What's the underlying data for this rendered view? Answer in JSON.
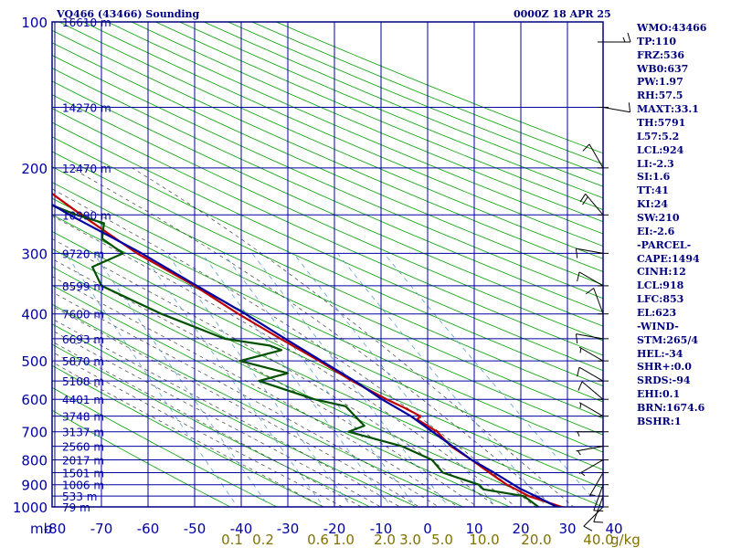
{
  "header": {
    "station": "VQ466 (43466) Sounding",
    "time": "0000Z 18 APR 25"
  },
  "indices": [
    "WMO:43466",
    "TP:110",
    "FRZ:536",
    "WB0:637",
    "PW:1.97",
    "RH:57.5",
    "MAXT:33.1",
    "TH:5791",
    "L57:5.2",
    "LCL:924",
    "LI:-2.3",
    "SI:1.6",
    "TT:41",
    "KI:24",
    "SW:210",
    "EI:-2.6",
    "-PARCEL-",
    "CAPE:1494",
    "CINH:12",
    "LCL:918",
    "LFC:853",
    "EL:623",
    "-WIND-",
    "STM:265/4",
    "HEL:-34",
    "SHR+:0.0",
    "SRDS:-94",
    "EHI:0.1",
    "BRN:1674.6",
    "BSHR:1"
  ],
  "colors": {
    "frame": "#00007f",
    "isotherm": "#0000a0",
    "isobar": "#0000a0",
    "dry_adiabat": "#00a000",
    "moist_adiabat": "#404040",
    "mixing_ratio": "#5aa0d0",
    "temperature": "#c00000",
    "dewpoint": "#005000",
    "parcel": "#0000a0",
    "axis_label": "#0000a0",
    "mixing_label": "#807000"
  },
  "chart_data": {
    "type": "skew-t",
    "y_axis": "pressure (hPa), logarithmic",
    "pressure_levels": [
      100,
      150,
      200,
      250,
      300,
      350,
      400,
      450,
      500,
      550,
      600,
      650,
      700,
      750,
      800,
      850,
      900,
      950,
      1000
    ],
    "y_tick_labels": [
      "100",
      "200",
      "300",
      "400",
      "500",
      "600",
      "700",
      "800",
      "900",
      "1000"
    ],
    "y_axis_unit": "mb",
    "x_tick_labels": [
      "-80",
      "-70",
      "-60",
      "-50",
      "-40",
      "-30",
      "-20",
      "-10",
      "0",
      "10",
      "20",
      "30",
      "40"
    ],
    "x_ticks": [
      -80,
      -70,
      -60,
      -50,
      -40,
      -30,
      -20,
      -10,
      0,
      10,
      20,
      30,
      40
    ],
    "height_labels": [
      {
        "p": 100,
        "text": "16610 m"
      },
      {
        "p": 150,
        "text": "14270 m"
      },
      {
        "p": 200,
        "text": "12470 m"
      },
      {
        "p": 250,
        "text": "10990 m"
      },
      {
        "p": 300,
        "text": "9720 m"
      },
      {
        "p": 350,
        "text": "8599 m"
      },
      {
        "p": 400,
        "text": "7600 m"
      },
      {
        "p": 450,
        "text": "6693 m"
      },
      {
        "p": 500,
        "text": "5870 m"
      },
      {
        "p": 550,
        "text": "5108 m"
      },
      {
        "p": 600,
        "text": "4401 m"
      },
      {
        "p": 650,
        "text": "3748 m"
      },
      {
        "p": 700,
        "text": "3137 m"
      },
      {
        "p": 750,
        "text": "2560 m"
      },
      {
        "p": 800,
        "text": "2017 m"
      },
      {
        "p": 850,
        "text": "1501 m"
      },
      {
        "p": 900,
        "text": "1006 m"
      },
      {
        "p": 950,
        "text": "533 m"
      },
      {
        "p": 1000,
        "text": "79 m"
      }
    ],
    "mixing_ratio_labels": [
      "0.1",
      "0.2",
      "0.6",
      "1.0",
      "2.0",
      "3.0",
      "5.0",
      "10.0",
      "20.0",
      "40.0"
    ],
    "mixing_ratio_unit": "g/kg",
    "series": [
      {
        "role": "temperature",
        "points": [
          [
            1006,
            29
          ],
          [
            1000,
            28
          ],
          [
            950,
            22
          ],
          [
            920,
            20
          ],
          [
            900,
            18.5
          ],
          [
            850,
            16
          ],
          [
            800,
            13.5
          ],
          [
            750,
            10.5
          ],
          [
            700,
            9
          ],
          [
            660,
            6
          ],
          [
            650,
            7
          ],
          [
            625,
            4.5
          ],
          [
            600,
            1.5
          ],
          [
            550,
            -4
          ],
          [
            500,
            -9
          ],
          [
            450,
            -15
          ],
          [
            400,
            -21.5
          ],
          [
            350,
            -28
          ],
          [
            300,
            -37
          ],
          [
            250,
            -45
          ],
          [
            200,
            -54
          ],
          [
            150,
            -63
          ],
          [
            110,
            -77
          ],
          [
            100,
            -80
          ]
        ]
      },
      {
        "role": "dewpoint",
        "points": [
          [
            1006,
            22
          ],
          [
            1000,
            23
          ],
          [
            950,
            21
          ],
          [
            920,
            13
          ],
          [
            900,
            12.5
          ],
          [
            850,
            6
          ],
          [
            800,
            5
          ],
          [
            750,
            0
          ],
          [
            700,
            -10
          ],
          [
            680,
            -6
          ],
          [
            650,
            -7
          ],
          [
            620,
            -8
          ],
          [
            600,
            -14
          ],
          [
            550,
            -24
          ],
          [
            530,
            -17
          ],
          [
            500,
            -26
          ],
          [
            475,
            -16
          ],
          [
            465,
            -18
          ],
          [
            450,
            -27
          ],
          [
            400,
            -38
          ],
          [
            350,
            -48
          ],
          [
            320,
            -48
          ],
          [
            300,
            -40
          ],
          [
            280,
            -43
          ],
          [
            260,
            -41
          ],
          [
            250,
            -46
          ],
          [
            220,
            -58
          ],
          [
            200,
            -62
          ],
          [
            180,
            -70
          ],
          [
            150,
            -72
          ],
          [
            120,
            -82
          ],
          [
            100,
            -86
          ]
        ]
      },
      {
        "role": "parcel",
        "points": [
          [
            1006,
            29
          ],
          [
            1000,
            27
          ],
          [
            950,
            23.5
          ],
          [
            918,
            21
          ],
          [
            850,
            17
          ],
          [
            800,
            13.5
          ],
          [
            700,
            8
          ],
          [
            650,
            5
          ],
          [
            600,
            0.5
          ],
          [
            550,
            -3.5
          ],
          [
            500,
            -8.5
          ],
          [
            450,
            -14
          ],
          [
            400,
            -20
          ],
          [
            350,
            -27.5
          ],
          [
            300,
            -36
          ],
          [
            250,
            -47.5
          ],
          [
            200,
            -60
          ],
          [
            150,
            -76
          ],
          [
            120,
            -86
          ]
        ]
      }
    ],
    "wind_barbs": [
      {
        "p": 1000,
        "dir": 225,
        "kt": 10
      },
      {
        "p": 950,
        "dir": 200,
        "kt": 10
      },
      {
        "p": 900,
        "dir": 200,
        "kt": 10
      },
      {
        "p": 850,
        "dir": 210,
        "kt": 5
      },
      {
        "p": 800,
        "dir": 240,
        "kt": 5
      },
      {
        "p": 750,
        "dir": 260,
        "kt": 5
      },
      {
        "p": 700,
        "dir": 270,
        "kt": 5
      },
      {
        "p": 650,
        "dir": 300,
        "kt": 5
      },
      {
        "p": 600,
        "dir": 310,
        "kt": 10
      },
      {
        "p": 550,
        "dir": 300,
        "kt": 10
      },
      {
        "p": 500,
        "dir": 300,
        "kt": 5
      },
      {
        "p": 450,
        "dir": 280,
        "kt": 10
      },
      {
        "p": 400,
        "dir": 340,
        "kt": 10
      },
      {
        "p": 350,
        "dir": 300,
        "kt": 10
      },
      {
        "p": 300,
        "dir": 280,
        "kt": 10
      },
      {
        "p": 250,
        "dir": 320,
        "kt": 20
      },
      {
        "p": 200,
        "dir": 330,
        "kt": 10
      },
      {
        "p": 150,
        "dir": 100,
        "kt": 10
      },
      {
        "p": 110,
        "dir": 90,
        "kt": 15
      }
    ]
  }
}
